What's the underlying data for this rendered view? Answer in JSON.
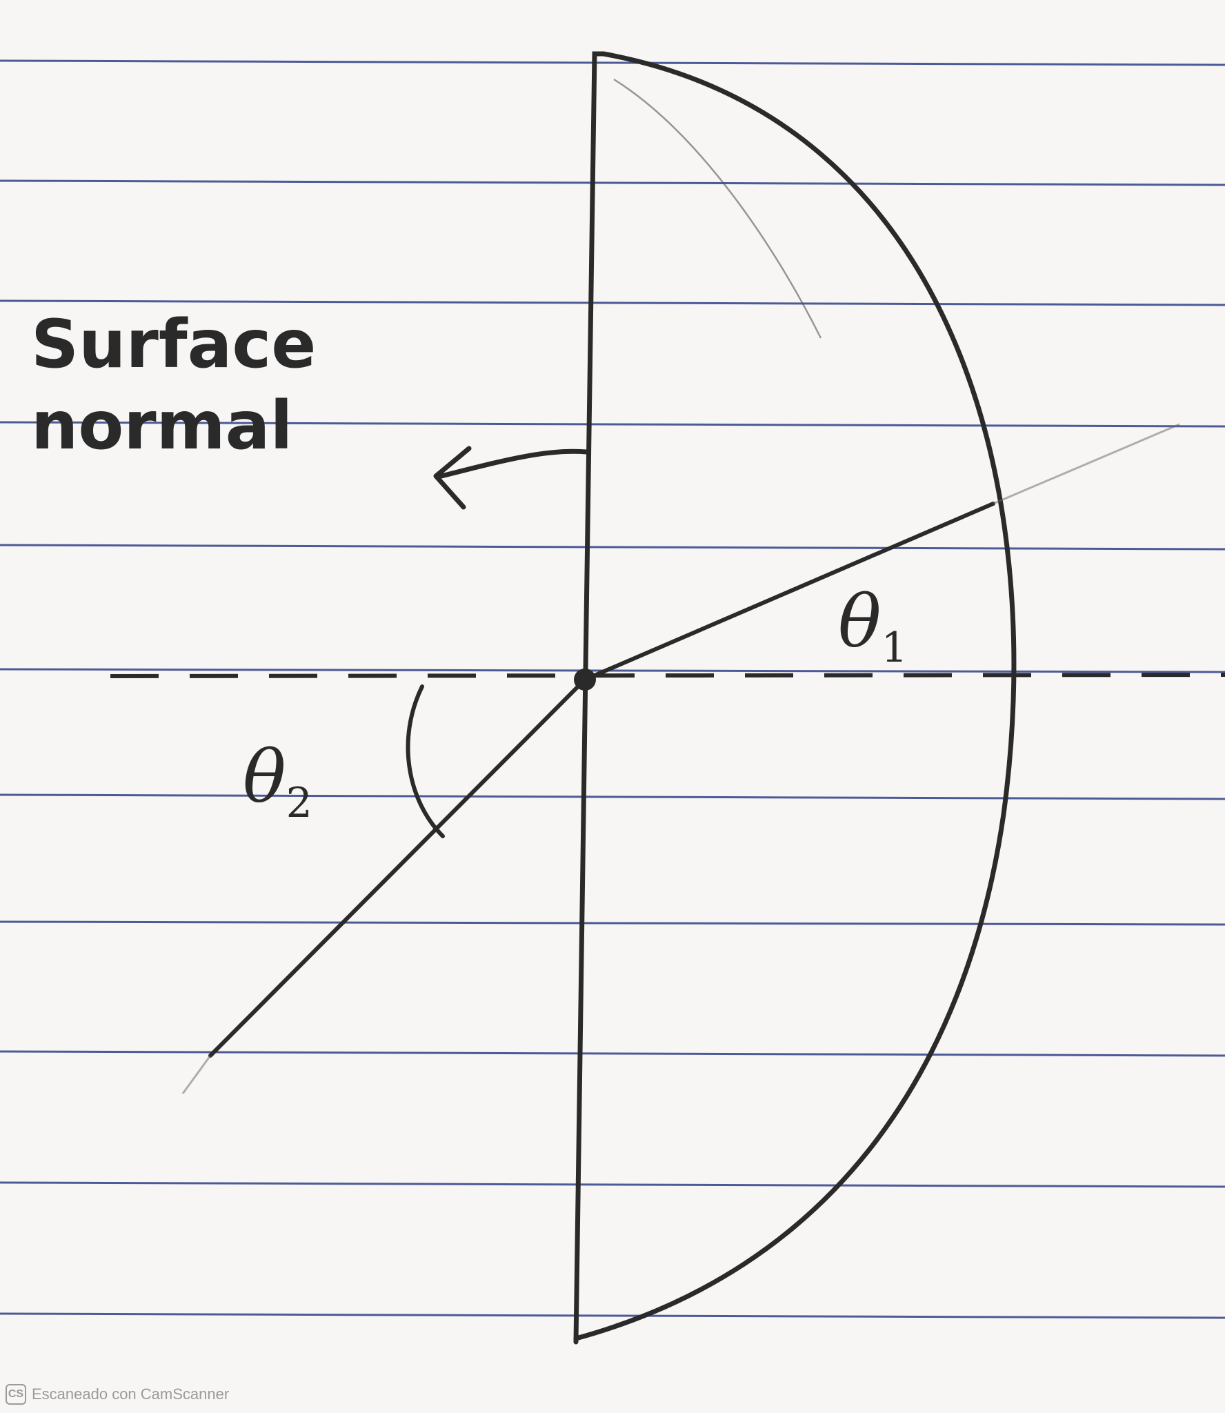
{
  "diagram": {
    "label_surface_normal": [
      "Surface",
      "normal"
    ],
    "theta1": {
      "symbol": "θ",
      "subscript": "1"
    },
    "theta2": {
      "symbol": "θ",
      "subscript": "2"
    }
  },
  "watermark": {
    "logo_text": "CS",
    "text": "Escaneado con CamScanner"
  },
  "colors": {
    "paper": "#f7f6f4",
    "rule_line": "#2f3f86",
    "ink": "#2a2a2a"
  }
}
